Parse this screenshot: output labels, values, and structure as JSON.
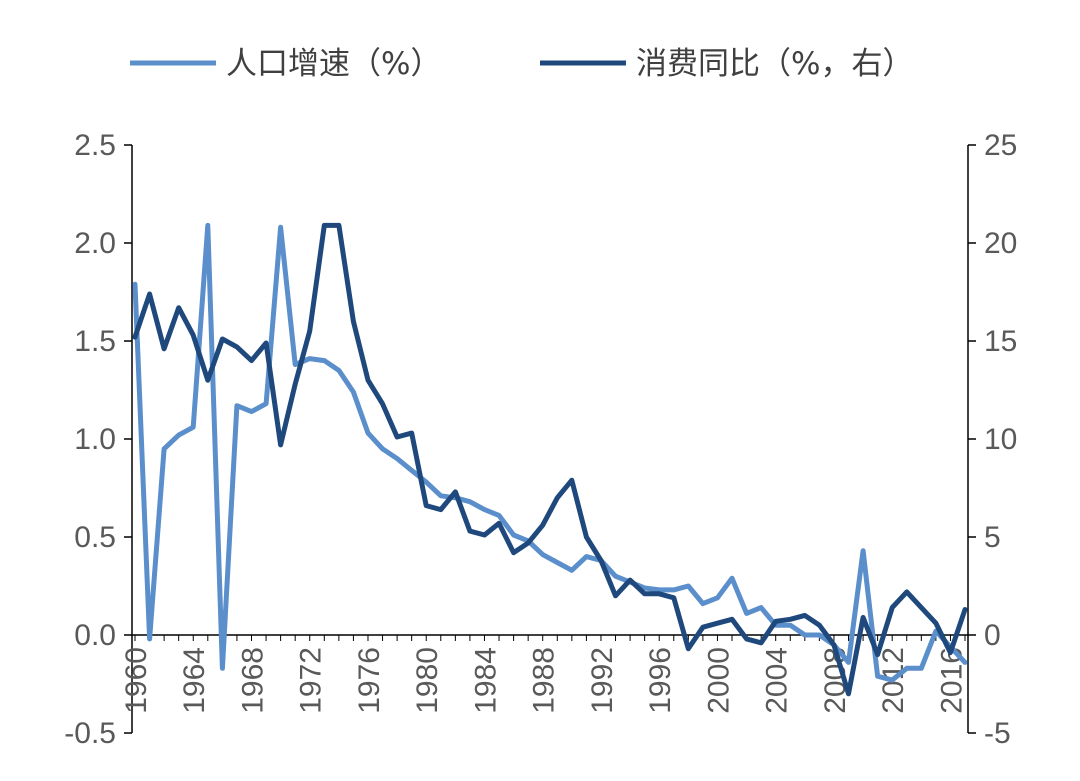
{
  "chart_data": {
    "type": "line",
    "title": "",
    "xlabel": "",
    "ylabel": "",
    "ylim": [
      -0.5,
      2.5
    ],
    "y2lim": [
      -5,
      25
    ],
    "x_ticks": [
      "1960",
      "1964",
      "1968",
      "1972",
      "1976",
      "1980",
      "1984",
      "1988",
      "1992",
      "1996",
      "2000",
      "2004",
      "2008",
      "2012",
      "2016"
    ],
    "y_ticks_left": [
      "2.5",
      "2.0",
      "1.5",
      "1.0",
      "0.5",
      "0.0",
      "-0.5"
    ],
    "y_ticks_right": [
      "25",
      "20",
      "15",
      "10",
      "5",
      "0",
      "-5"
    ],
    "legend_position": "top",
    "grid": false,
    "series": [
      {
        "name": "人口增速（%）",
        "axis": "left",
        "color": "#5b8fcb",
        "x": [
          1960,
          1961,
          1962,
          1963,
          1964,
          1965,
          1966,
          1967,
          1968,
          1969,
          1970,
          1971,
          1972,
          1973,
          1974,
          1975,
          1976,
          1977,
          1978,
          1979,
          1980,
          1981,
          1982,
          1983,
          1984,
          1985,
          1986,
          1987,
          1988,
          1989,
          1990,
          1991,
          1992,
          1993,
          1994,
          1995,
          1996,
          1997,
          1998,
          1999,
          2000,
          2001,
          2002,
          2003,
          2004,
          2005,
          2006,
          2007,
          2008,
          2009,
          2010,
          2011,
          2012,
          2013,
          2014,
          2015,
          2016,
          2017
        ],
        "values": [
          1.79,
          -0.02,
          0.95,
          1.02,
          1.06,
          2.09,
          -0.17,
          1.17,
          1.14,
          1.18,
          2.08,
          1.38,
          1.41,
          1.4,
          1.35,
          1.24,
          1.03,
          0.95,
          0.9,
          0.84,
          0.78,
          0.71,
          0.7,
          0.68,
          0.64,
          0.61,
          0.51,
          0.48,
          0.41,
          0.37,
          0.33,
          0.4,
          0.38,
          0.3,
          0.27,
          0.24,
          0.23,
          0.23,
          0.25,
          0.16,
          0.19,
          0.29,
          0.11,
          0.14,
          0.05,
          0.05,
          0.0,
          0.0,
          -0.05,
          -0.14,
          0.43,
          -0.21,
          -0.23,
          -0.17,
          -0.17,
          0.02,
          -0.06,
          -0.14
        ]
      },
      {
        "name": "消费同比（%，右）",
        "axis": "right",
        "color": "#1f497d",
        "x": [
          1960,
          1961,
          1962,
          1963,
          1964,
          1965,
          1966,
          1967,
          1968,
          1969,
          1970,
          1971,
          1972,
          1973,
          1974,
          1975,
          1976,
          1977,
          1978,
          1979,
          1980,
          1981,
          1982,
          1983,
          1984,
          1985,
          1986,
          1987,
          1988,
          1989,
          1990,
          1991,
          1992,
          1993,
          1994,
          1995,
          1996,
          1997,
          1998,
          1999,
          2000,
          2001,
          2002,
          2003,
          2004,
          2005,
          2006,
          2007,
          2008,
          2009,
          2010,
          2011,
          2012,
          2013,
          2014,
          2015,
          2016,
          2017
        ],
        "values": [
          15.2,
          17.4,
          14.6,
          16.7,
          15.3,
          13.0,
          15.1,
          14.7,
          14.0,
          14.9,
          9.7,
          12.8,
          15.5,
          20.9,
          20.9,
          16.0,
          13.0,
          11.8,
          10.1,
          10.3,
          6.6,
          6.4,
          7.3,
          5.3,
          5.1,
          5.7,
          4.2,
          4.7,
          5.6,
          7.0,
          7.9,
          5.0,
          3.8,
          2.0,
          2.8,
          2.1,
          2.1,
          1.9,
          -0.7,
          0.4,
          0.6,
          0.8,
          -0.2,
          -0.4,
          0.7,
          0.8,
          1.0,
          0.5,
          -0.5,
          -3.0,
          0.9,
          -1.0,
          1.4,
          2.2,
          1.4,
          0.6,
          -0.9,
          1.3
        ]
      }
    ]
  }
}
